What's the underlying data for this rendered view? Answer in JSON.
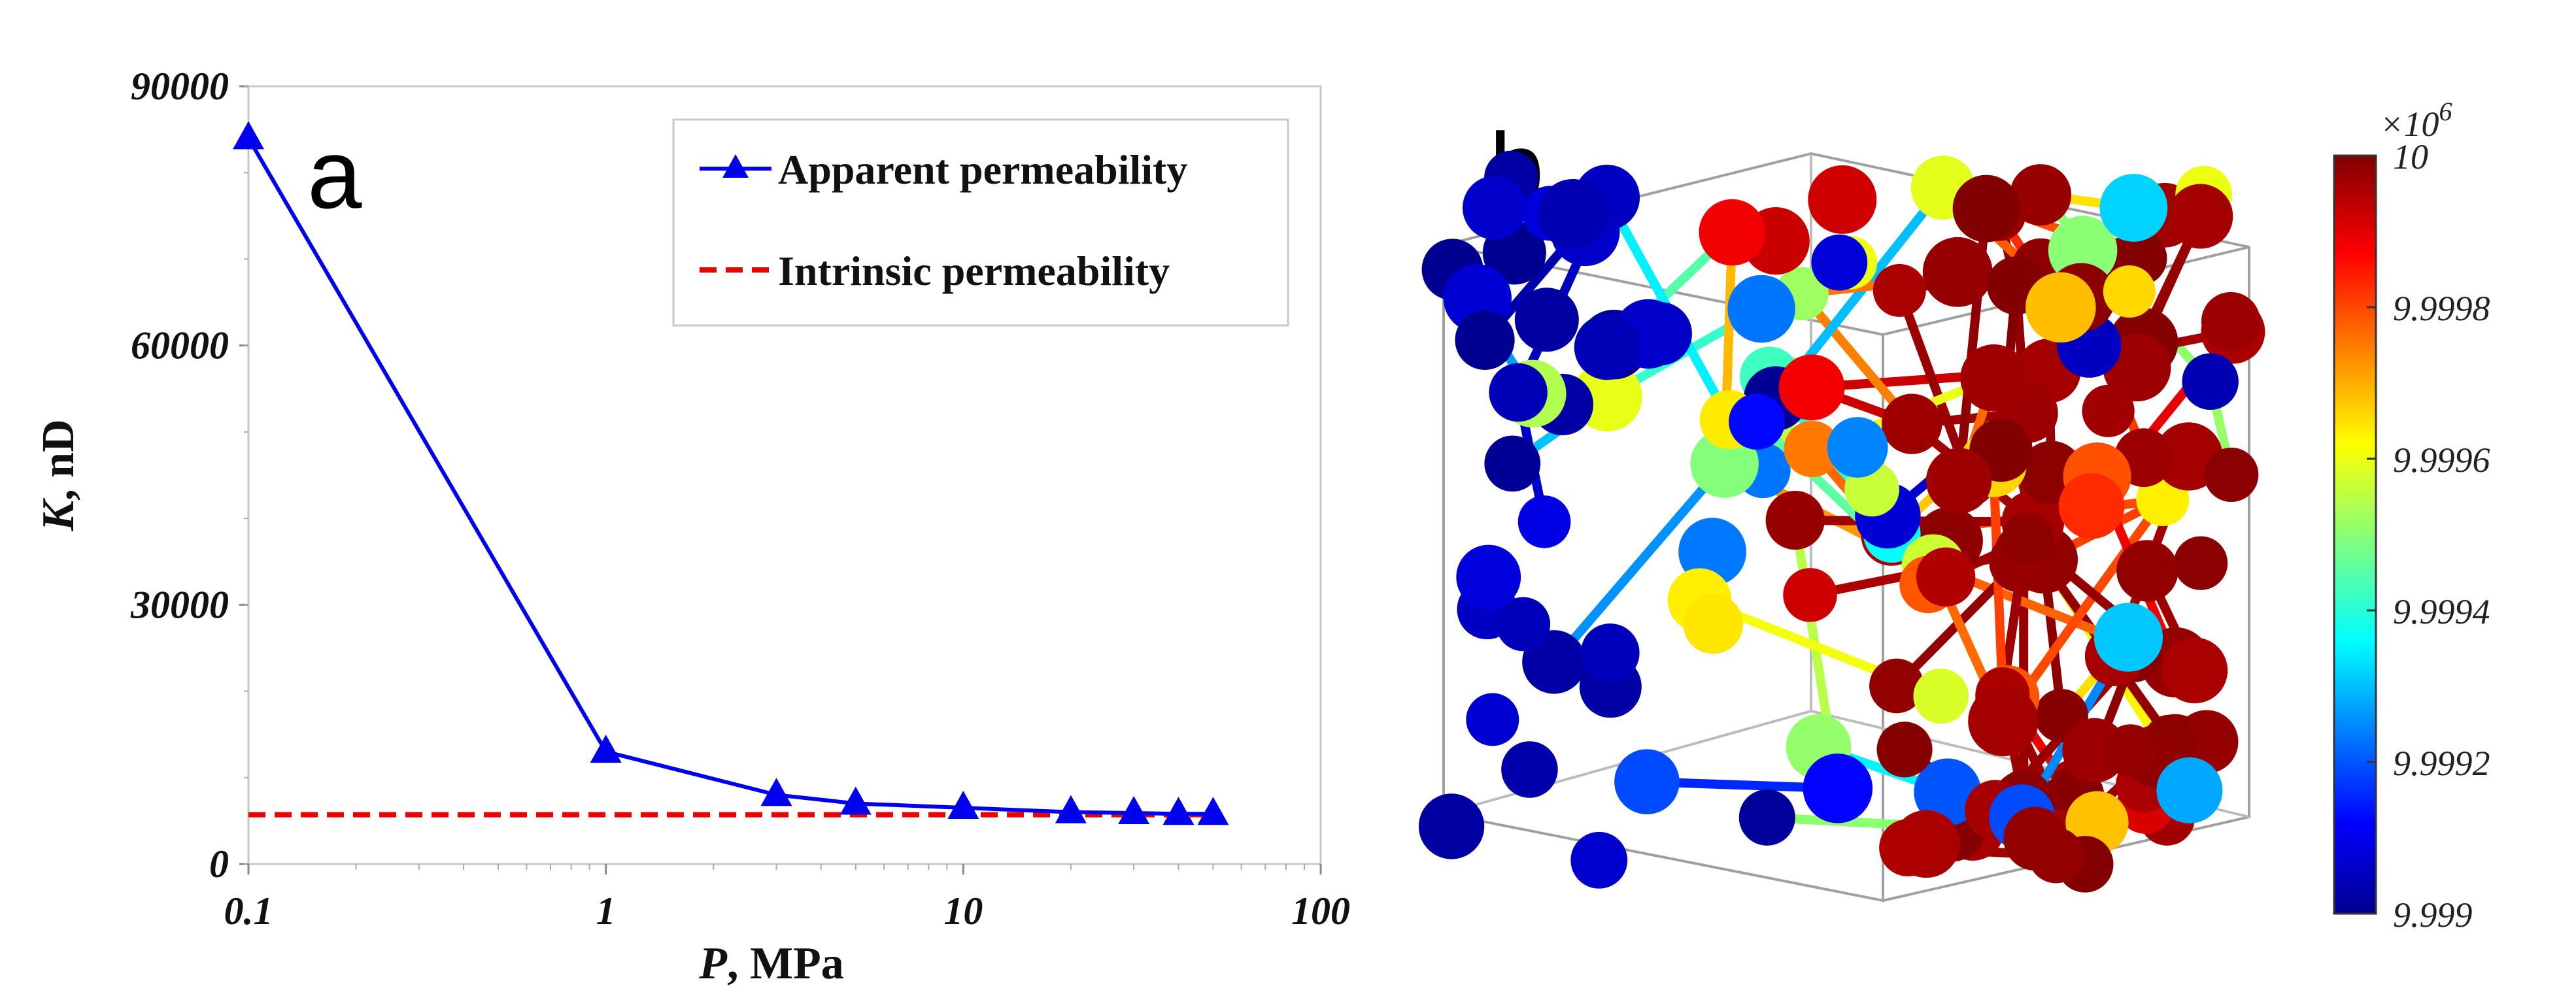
{
  "chart_data": [
    {
      "type": "line",
      "panel_label": "a",
      "xlabel_var": "P",
      "xlabel_unit": ", MPa",
      "ylabel_var": "K",
      "ylabel_unit": ", nD",
      "xscale": "log",
      "xlim": [
        0.1,
        100
      ],
      "ylim": [
        0,
        90000
      ],
      "x_ticks": [
        "0.1",
        "1",
        "10",
        "100"
      ],
      "y_ticks": [
        "0",
        "30000",
        "60000",
        "90000"
      ],
      "legend_position": "top-right",
      "grid": false,
      "series": [
        {
          "name": "Apparent permeability",
          "color": "#0000ee",
          "marker": "triangle",
          "x": [
            0.1,
            1,
            3,
            5,
            10,
            20,
            30,
            40,
            50
          ],
          "y": [
            84000,
            13000,
            8000,
            7000,
            6500,
            6000,
            5900,
            5800,
            5800
          ]
        },
        {
          "name": "Intrinsic permeability",
          "color": "#ee0000",
          "style": "dashed",
          "x": [
            0.1,
            50
          ],
          "y": [
            5700,
            5700
          ]
        }
      ]
    },
    {
      "type": "other",
      "panel_label": "b",
      "description_colormap": "jet",
      "colorbar_exponent": "×10",
      "colorbar_exponent_power": "6",
      "colorbar_ticks": [
        "10",
        "9.9998",
        "9.9996",
        "9.9994",
        "9.9992",
        "9.999"
      ],
      "colorbar_range": [
        9.999,
        10
      ]
    }
  ]
}
